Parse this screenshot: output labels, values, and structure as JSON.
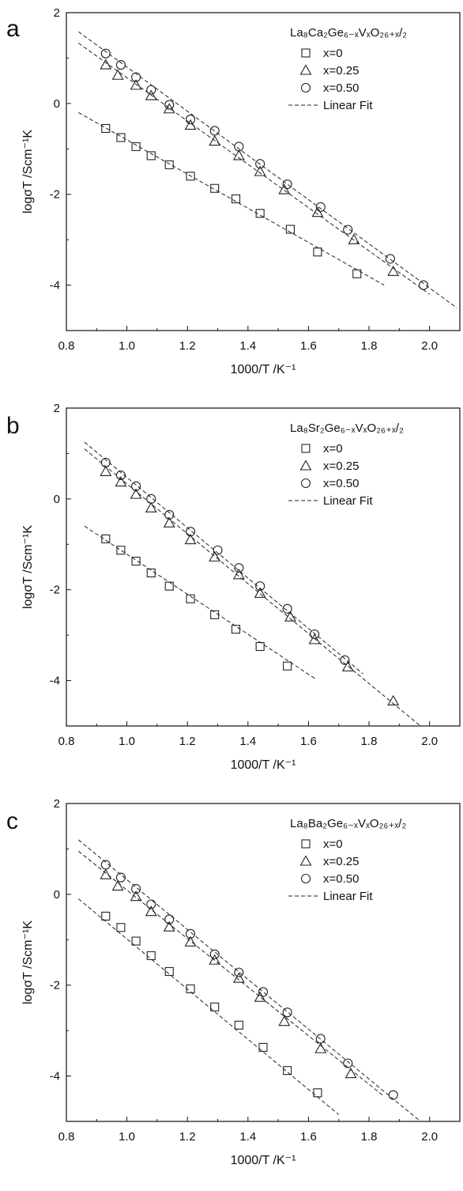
{
  "chart_data": [
    {
      "panel_label": "a",
      "type": "scatter",
      "xlabel": "1000/T /K⁻¹",
      "ylabel": "logσT /Scm⁻¹K",
      "xlim": [
        0.8,
        2.1
      ],
      "ylim": [
        -5,
        2
      ],
      "x_ticks": [
        "0.8",
        "1.0",
        "1.2",
        "1.4",
        "1.6",
        "1.8",
        "2.0"
      ],
      "y_ticks": [
        "2",
        "0",
        "-2",
        "-4"
      ],
      "legend_title": "La₈Ca₂Ge₆₋ₓVₓO₂₆₊ₓ/₂",
      "legend_position": "top-right",
      "fit_label": "Linear Fit",
      "series": [
        {
          "name": "x=0",
          "marker": "square",
          "x": [
            0.93,
            0.98,
            1.03,
            1.08,
            1.14,
            1.21,
            1.29,
            1.36,
            1.44,
            1.54,
            1.63,
            1.76
          ],
          "y": [
            -0.55,
            -0.75,
            -0.95,
            -1.15,
            -1.35,
            -1.6,
            -1.87,
            -2.1,
            -2.42,
            -2.77,
            -3.27,
            -3.75
          ],
          "fit": [
            [
              0.84,
              -0.2
            ],
            [
              1.85,
              -4.0
            ]
          ]
        },
        {
          "name": "x=0.25",
          "marker": "triangle",
          "x": [
            0.93,
            0.97,
            1.03,
            1.08,
            1.14,
            1.21,
            1.29,
            1.37,
            1.44,
            1.52,
            1.63,
            1.75,
            1.88
          ],
          "y": [
            0.85,
            0.62,
            0.4,
            0.17,
            -0.12,
            -0.48,
            -0.83,
            -1.15,
            -1.5,
            -1.9,
            -2.4,
            -3.0,
            -3.7
          ],
          "fit": [
            [
              0.84,
              1.33
            ],
            [
              2.0,
              -4.2
            ]
          ]
        },
        {
          "name": "x=0.50",
          "marker": "circle",
          "x": [
            0.93,
            0.98,
            1.03,
            1.08,
            1.14,
            1.21,
            1.29,
            1.37,
            1.44,
            1.53,
            1.64,
            1.73,
            1.87,
            1.98
          ],
          "y": [
            1.1,
            0.85,
            0.58,
            0.3,
            -0.03,
            -0.35,
            -0.6,
            -0.95,
            -1.33,
            -1.78,
            -2.28,
            -2.78,
            -3.42,
            -4.0
          ],
          "fit": [
            [
              0.84,
              1.58
            ],
            [
              2.09,
              -4.5
            ]
          ]
        }
      ]
    },
    {
      "panel_label": "b",
      "type": "scatter",
      "xlabel": "1000/T /K⁻¹",
      "ylabel": "logσT /Scm⁻¹K",
      "xlim": [
        0.8,
        2.1
      ],
      "ylim": [
        -5,
        2
      ],
      "x_ticks": [
        "0.8",
        "1.0",
        "1.2",
        "1.4",
        "1.6",
        "1.8",
        "2.0"
      ],
      "y_ticks": [
        "2",
        "0",
        "-2",
        "-4"
      ],
      "legend_title": "La₈Sr₂Ge₆₋ₓVₓO₂₆₊ₓ/₂",
      "legend_position": "top-right",
      "fit_label": "Linear Fit",
      "series": [
        {
          "name": "x=0",
          "marker": "square",
          "x": [
            0.93,
            0.98,
            1.03,
            1.08,
            1.14,
            1.21,
            1.29,
            1.36,
            1.44,
            1.53
          ],
          "y": [
            -0.88,
            -1.13,
            -1.37,
            -1.63,
            -1.92,
            -2.2,
            -2.55,
            -2.87,
            -3.25,
            -3.68
          ],
          "fit": [
            [
              0.86,
              -0.6
            ],
            [
              1.62,
              -3.95
            ]
          ]
        },
        {
          "name": "x=0.25",
          "marker": "triangle",
          "x": [
            0.93,
            0.98,
            1.03,
            1.08,
            1.14,
            1.21,
            1.29,
            1.37,
            1.44,
            1.54,
            1.62,
            1.73,
            1.88
          ],
          "y": [
            0.6,
            0.37,
            0.1,
            -0.2,
            -0.53,
            -0.9,
            -1.28,
            -1.67,
            -2.08,
            -2.6,
            -3.1,
            -3.7,
            -4.45
          ],
          "fit": [
            [
              0.86,
              1.1
            ],
            [
              1.97,
              -5.0
            ]
          ]
        },
        {
          "name": "x=0.50",
          "marker": "circle",
          "x": [
            0.93,
            0.98,
            1.03,
            1.08,
            1.14,
            1.21,
            1.3,
            1.37,
            1.44,
            1.53,
            1.62,
            1.72
          ],
          "y": [
            0.8,
            0.52,
            0.28,
            0.0,
            -0.35,
            -0.72,
            -1.13,
            -1.52,
            -1.92,
            -2.42,
            -2.98,
            -3.55
          ],
          "fit": [
            [
              0.86,
              1.25
            ],
            [
              1.78,
              -3.85
            ]
          ]
        }
      ]
    },
    {
      "panel_label": "c",
      "type": "scatter",
      "xlabel": "1000/T /K⁻¹",
      "ylabel": "logσT /Scm⁻¹K",
      "xlim": [
        0.8,
        2.1
      ],
      "ylim": [
        -5,
        2
      ],
      "x_ticks": [
        "0.8",
        "1.0",
        "1.2",
        "1.4",
        "1.6",
        "1.8",
        "2.0"
      ],
      "y_ticks": [
        "2",
        "0",
        "-2",
        "-4"
      ],
      "legend_title": "La₈Ba₂Ge₆₋ₓVₓO₂₆₊ₓ/₂",
      "legend_position": "top-right",
      "fit_label": "Linear Fit",
      "series": [
        {
          "name": "x=0",
          "marker": "square",
          "x": [
            0.93,
            0.98,
            1.03,
            1.08,
            1.14,
            1.21,
            1.29,
            1.37,
            1.45,
            1.53,
            1.63
          ],
          "y": [
            -0.48,
            -0.73,
            -1.03,
            -1.35,
            -1.7,
            -2.08,
            -2.48,
            -2.88,
            -3.37,
            -3.88,
            -4.37
          ],
          "fit": [
            [
              0.84,
              -0.1
            ],
            [
              1.7,
              -4.85
            ]
          ]
        },
        {
          "name": "x=0.25",
          "marker": "triangle",
          "x": [
            0.93,
            0.97,
            1.03,
            1.08,
            1.14,
            1.21,
            1.29,
            1.37,
            1.44,
            1.52,
            1.64,
            1.74
          ],
          "y": [
            0.43,
            0.18,
            -0.05,
            -0.38,
            -0.72,
            -1.05,
            -1.45,
            -1.85,
            -2.27,
            -2.8,
            -3.4,
            -3.95
          ],
          "fit": [
            [
              0.84,
              0.95
            ],
            [
              1.85,
              -4.45
            ]
          ]
        },
        {
          "name": "x=0.50",
          "marker": "circle",
          "x": [
            0.93,
            0.98,
            1.03,
            1.08,
            1.14,
            1.21,
            1.29,
            1.37,
            1.45,
            1.53,
            1.64,
            1.73,
            1.88
          ],
          "y": [
            0.65,
            0.37,
            0.12,
            -0.22,
            -0.55,
            -0.87,
            -1.32,
            -1.72,
            -2.15,
            -2.6,
            -3.18,
            -3.72,
            -4.42
          ],
          "fit": [
            [
              0.84,
              1.2
            ],
            [
              1.97,
              -5.0
            ]
          ]
        }
      ]
    }
  ]
}
